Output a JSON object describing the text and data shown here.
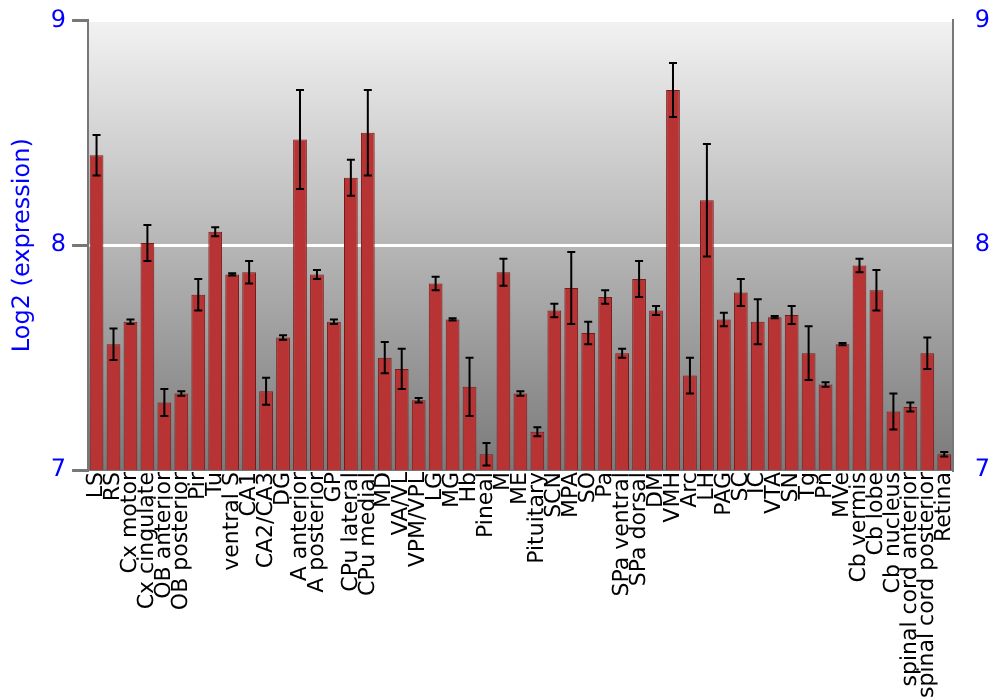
{
  "chart_data": {
    "type": "bar",
    "ylabel": "Log2 (expression)",
    "categories": [
      "LS",
      "RS",
      "Cx motor",
      "Cx cingulate",
      "OB anterior",
      "OB posterior",
      "Pir",
      "Tu",
      "ventral S",
      "CA1",
      "CA2/CA3",
      "DG",
      "A anterior",
      "A posterior",
      "GP",
      "CPu lateral",
      "CPu medial",
      "MD",
      "VA/VL",
      "VPM/VPL",
      "LG",
      "MG",
      "Hb",
      "Pineal",
      "M",
      "ME",
      "Pituitary",
      "SCN",
      "MPA",
      "SO",
      "Pa",
      "SPa ventral",
      "SPa dorsal",
      "DM",
      "VMH",
      "Arc",
      "LH",
      "PAG",
      "SC",
      "IC",
      "VTA",
      "SN",
      "Tg",
      "Pn",
      "MVe",
      "Cb vermis",
      "Cb lobe",
      "Cb nucleus",
      "spinal cord anterior",
      "spinal cord posterior",
      "Retina"
    ],
    "values": [
      8.4,
      7.56,
      7.66,
      8.01,
      7.3,
      7.34,
      7.78,
      8.06,
      7.87,
      7.88,
      7.35,
      7.59,
      8.47,
      7.87,
      7.66,
      8.3,
      8.5,
      7.5,
      7.45,
      7.31,
      7.83,
      7.67,
      7.37,
      7.07,
      7.88,
      7.34,
      7.17,
      7.71,
      7.81,
      7.61,
      7.77,
      7.52,
      7.85,
      7.71,
      8.69,
      7.42,
      8.2,
      7.67,
      7.79,
      7.66,
      7.68,
      7.69,
      7.52,
      7.38,
      7.56,
      7.91,
      7.8,
      7.26,
      7.28,
      7.52,
      7.07
    ],
    "errors": [
      0.09,
      0.07,
      0.01,
      0.08,
      0.06,
      0.01,
      0.07,
      0.02,
      0.005,
      0.05,
      0.06,
      0.01,
      0.22,
      0.02,
      0.01,
      0.08,
      0.19,
      0.07,
      0.09,
      0.01,
      0.03,
      0.005,
      0.13,
      0.05,
      0.06,
      0.01,
      0.02,
      0.03,
      0.16,
      0.05,
      0.03,
      0.02,
      0.08,
      0.02,
      0.12,
      0.08,
      0.25,
      0.03,
      0.06,
      0.1,
      0.005,
      0.04,
      0.12,
      0.01,
      0.005,
      0.03,
      0.09,
      0.08,
      0.02,
      0.07,
      0.01
    ],
    "color": "#b83434",
    "ylim": [
      7,
      9
    ],
    "yticks": [
      7,
      8,
      9
    ],
    "y2lim": [
      7,
      9
    ],
    "y2ticks": [
      7,
      8,
      9
    ],
    "grid": "y"
  }
}
